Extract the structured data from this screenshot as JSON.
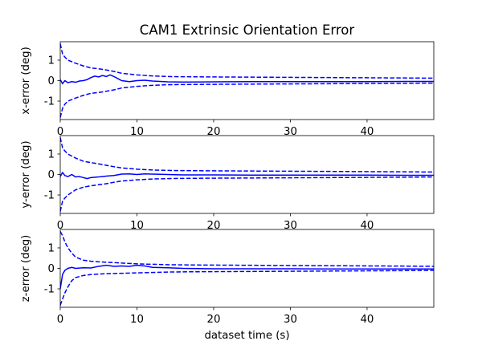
{
  "figure": {
    "title": "CAM1 Extrinsic Orientation Error"
  },
  "chart_data": [
    {
      "type": "line",
      "ylabel": "x-error (deg)",
      "xlabel": "",
      "xlim": [
        0,
        48.7
      ],
      "ylim": [
        -1.9,
        1.9
      ],
      "xticks": [
        0,
        10,
        20,
        30,
        40
      ],
      "yticks": [
        -1,
        0,
        1
      ],
      "grid": false,
      "series": [
        {
          "style": "solid",
          "color": "#0000ff",
          "x": [
            0,
            0.3,
            0.6,
            1.0,
            1.5,
            2.0,
            2.5,
            3.0,
            3.5,
            4.0,
            4.5,
            5.0,
            5.5,
            6.0,
            6.5,
            7.0,
            7.5,
            8.0,
            9.0,
            10.0,
            11.0,
            12.0,
            13.0,
            14.0,
            16.0,
            20.0,
            25.0,
            30.0,
            35.0,
            40.0,
            45.0,
            48.7
          ],
          "y": [
            0.05,
            -0.15,
            0.0,
            -0.1,
            -0.05,
            -0.08,
            -0.02,
            0.0,
            0.05,
            0.15,
            0.22,
            0.18,
            0.25,
            0.2,
            0.28,
            0.2,
            0.1,
            0.0,
            -0.05,
            0.0,
            0.02,
            -0.02,
            -0.04,
            -0.06,
            -0.07,
            -0.06,
            -0.05,
            -0.05,
            -0.05,
            -0.05,
            -0.04,
            -0.04
          ]
        },
        {
          "style": "dashed",
          "color": "#0000ff",
          "x": [
            0,
            0.3,
            0.6,
            1.0,
            2.0,
            3.0,
            4.0,
            5.0,
            6.0,
            7.0,
            8.0,
            10.0,
            12.0,
            14.0,
            16.0,
            20.0,
            25.0,
            30.0,
            35.0,
            40.0,
            45.0,
            48.7
          ],
          "y": [
            1.8,
            1.3,
            1.15,
            1.0,
            0.85,
            0.72,
            0.62,
            0.58,
            0.52,
            0.45,
            0.36,
            0.28,
            0.23,
            0.2,
            0.19,
            0.18,
            0.17,
            0.16,
            0.15,
            0.14,
            0.13,
            0.12
          ]
        },
        {
          "style": "dashed",
          "color": "#0000ff",
          "x": [
            0,
            0.3,
            0.6,
            1.0,
            2.0,
            3.0,
            4.0,
            5.0,
            6.0,
            7.0,
            8.0,
            10.0,
            12.0,
            14.0,
            16.0,
            20.0,
            25.0,
            30.0,
            35.0,
            40.0,
            45.0,
            48.7
          ],
          "y": [
            -1.8,
            -1.35,
            -1.15,
            -1.0,
            -0.85,
            -0.72,
            -0.62,
            -0.58,
            -0.52,
            -0.45,
            -0.36,
            -0.28,
            -0.23,
            -0.2,
            -0.19,
            -0.18,
            -0.17,
            -0.16,
            -0.15,
            -0.14,
            -0.13,
            -0.12
          ]
        }
      ]
    },
    {
      "type": "line",
      "ylabel": "y-error (deg)",
      "xlabel": "",
      "xlim": [
        0,
        48.7
      ],
      "ylim": [
        -1.9,
        1.9
      ],
      "xticks": [
        0,
        10,
        20,
        30,
        40
      ],
      "yticks": [
        -1,
        0,
        1
      ],
      "grid": false,
      "series": [
        {
          "style": "solid",
          "color": "#0000ff",
          "x": [
            0,
            0.3,
            0.6,
            1.0,
            1.5,
            2.0,
            2.5,
            3.0,
            3.5,
            4.0,
            5.0,
            6.0,
            7.0,
            8.0,
            9.0,
            10.0,
            11.0,
            12.0,
            14.0,
            16.0,
            20.0,
            25.0,
            30.0,
            35.0,
            40.0,
            45.0,
            48.7
          ],
          "y": [
            -0.1,
            0.1,
            -0.05,
            -0.1,
            0.0,
            -0.12,
            -0.1,
            -0.15,
            -0.2,
            -0.15,
            -0.12,
            -0.08,
            -0.05,
            0.02,
            0.03,
            0.0,
            0.03,
            0.02,
            0.0,
            -0.02,
            -0.02,
            -0.03,
            -0.03,
            -0.03,
            -0.03,
            -0.04,
            -0.04
          ]
        },
        {
          "style": "dashed",
          "color": "#0000ff",
          "x": [
            0,
            0.3,
            0.6,
            1.0,
            2.0,
            3.0,
            4.0,
            5.0,
            6.0,
            7.0,
            8.0,
            10.0,
            12.0,
            14.0,
            16.0,
            20.0,
            25.0,
            30.0,
            35.0,
            40.0,
            45.0,
            48.7
          ],
          "y": [
            1.8,
            1.3,
            1.15,
            1.0,
            0.8,
            0.65,
            0.58,
            0.52,
            0.45,
            0.38,
            0.32,
            0.26,
            0.22,
            0.2,
            0.19,
            0.18,
            0.17,
            0.16,
            0.15,
            0.14,
            0.13,
            0.12
          ]
        },
        {
          "style": "dashed",
          "color": "#0000ff",
          "x": [
            0,
            0.3,
            0.6,
            1.0,
            2.0,
            3.0,
            4.0,
            5.0,
            6.0,
            7.0,
            8.0,
            10.0,
            12.0,
            14.0,
            16.0,
            20.0,
            25.0,
            30.0,
            35.0,
            40.0,
            45.0,
            48.7
          ],
          "y": [
            -1.8,
            -1.3,
            -1.15,
            -1.0,
            -0.75,
            -0.62,
            -0.55,
            -0.5,
            -0.45,
            -0.38,
            -0.32,
            -0.26,
            -0.22,
            -0.2,
            -0.19,
            -0.18,
            -0.17,
            -0.16,
            -0.15,
            -0.14,
            -0.13,
            -0.12
          ]
        }
      ]
    },
    {
      "type": "line",
      "ylabel": "z-error (deg)",
      "xlabel": "dataset time (s)",
      "xlim": [
        0,
        48.7
      ],
      "ylim": [
        -1.9,
        1.9
      ],
      "xticks": [
        0,
        10,
        20,
        30,
        40
      ],
      "yticks": [
        -1,
        0,
        1
      ],
      "grid": false,
      "series": [
        {
          "style": "solid",
          "color": "#0000ff",
          "x": [
            0,
            0.3,
            0.6,
            1.0,
            1.5,
            2.0,
            3.0,
            4.0,
            5.0,
            6.0,
            7.0,
            8.0,
            9.0,
            10.0,
            11.0,
            12.0,
            14.0,
            16.0,
            20.0,
            25.0,
            30.0,
            35.0,
            40.0,
            45.0,
            48.7
          ],
          "y": [
            -1.0,
            -0.3,
            -0.1,
            0.0,
            0.05,
            0.0,
            0.03,
            0.02,
            0.1,
            0.15,
            0.1,
            0.12,
            0.1,
            0.15,
            0.12,
            0.05,
            0.03,
            0.0,
            -0.02,
            -0.02,
            -0.02,
            -0.03,
            -0.03,
            -0.03,
            -0.03
          ]
        },
        {
          "style": "dashed",
          "color": "#0000ff",
          "x": [
            0,
            0.3,
            0.6,
            1.0,
            1.5,
            2.0,
            3.0,
            4.0,
            5.0,
            6.0,
            7.0,
            8.0,
            10.0,
            12.0,
            14.0,
            16.0,
            20.0,
            25.0,
            30.0,
            35.0,
            40.0,
            45.0,
            48.7
          ],
          "y": [
            1.8,
            1.6,
            1.3,
            1.0,
            0.75,
            0.55,
            0.4,
            0.35,
            0.32,
            0.3,
            0.28,
            0.26,
            0.22,
            0.2,
            0.18,
            0.17,
            0.16,
            0.15,
            0.14,
            0.13,
            0.12,
            0.11,
            0.1
          ]
        },
        {
          "style": "dashed",
          "color": "#0000ff",
          "x": [
            0,
            0.3,
            0.6,
            1.0,
            1.5,
            2.0,
            3.0,
            4.0,
            5.0,
            6.0,
            7.0,
            8.0,
            10.0,
            12.0,
            14.0,
            16.0,
            20.0,
            25.0,
            30.0,
            35.0,
            40.0,
            45.0,
            48.7
          ],
          "y": [
            -1.8,
            -1.5,
            -1.2,
            -0.9,
            -0.6,
            -0.45,
            -0.35,
            -0.3,
            -0.28,
            -0.26,
            -0.25,
            -0.24,
            -0.22,
            -0.2,
            -0.18,
            -0.17,
            -0.16,
            -0.15,
            -0.14,
            -0.13,
            -0.12,
            -0.11,
            -0.1
          ]
        }
      ]
    }
  ]
}
